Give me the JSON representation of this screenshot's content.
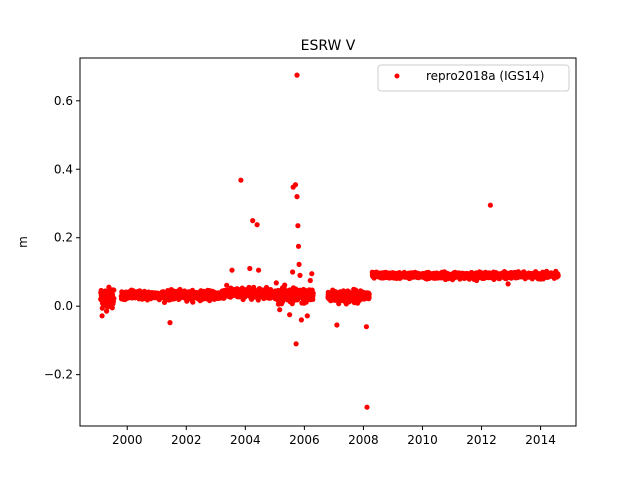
{
  "chart_data": {
    "type": "scatter",
    "title": "ESRW V",
    "xlabel": "",
    "ylabel": "m",
    "xlim": [
      1998.4,
      2015.2
    ],
    "ylim": [
      -0.35,
      0.725
    ],
    "xticks": [
      2000,
      2002,
      2004,
      2006,
      2008,
      2010,
      2012,
      2014
    ],
    "xtick_labels": [
      "2000",
      "2002",
      "2004",
      "2006",
      "2008",
      "2010",
      "2012",
      "2014"
    ],
    "yticks": [
      -0.2,
      0.0,
      0.2,
      0.4,
      0.6
    ],
    "ytick_labels": [
      "−0.2",
      "0.0",
      "0.2",
      "0.4",
      "0.6"
    ],
    "grid": false,
    "legend_position": "top-right",
    "colors": {
      "series": "#ff0000",
      "axes": "#000000"
    },
    "series": [
      {
        "name": "repro2018a (IGS14)",
        "marker": "circle",
        "color": "#ff0000",
        "segments": [
          {
            "x_start": 1999.1,
            "x_end": 1999.55,
            "y_center": 0.025,
            "y_spread": 0.03
          },
          {
            "x_start": 1999.8,
            "x_end": 2003.2,
            "y_center": 0.032,
            "y_spread": 0.012
          },
          {
            "x_start": 2003.2,
            "x_end": 2004.9,
            "y_center": 0.038,
            "y_spread": 0.014
          },
          {
            "x_start": 2005.0,
            "x_end": 2006.3,
            "y_center": 0.03,
            "y_spread": 0.02
          },
          {
            "x_start": 2006.8,
            "x_end": 2008.2,
            "y_center": 0.03,
            "y_spread": 0.016
          },
          {
            "x_start": 2008.3,
            "x_end": 2014.6,
            "y_center": 0.09,
            "y_spread": 0.008
          }
        ],
        "outliers": [
          {
            "x": 1999.15,
            "y": -0.028
          },
          {
            "x": 2001.45,
            "y": -0.048
          },
          {
            "x": 2003.55,
            "y": 0.105
          },
          {
            "x": 2003.85,
            "y": 0.368
          },
          {
            "x": 2004.15,
            "y": 0.11
          },
          {
            "x": 2004.25,
            "y": 0.25
          },
          {
            "x": 2004.4,
            "y": 0.238
          },
          {
            "x": 2004.45,
            "y": 0.105
          },
          {
            "x": 2005.05,
            "y": 0.068
          },
          {
            "x": 2005.5,
            "y": -0.025
          },
          {
            "x": 2005.6,
            "y": 0.1
          },
          {
            "x": 2005.62,
            "y": 0.348
          },
          {
            "x": 2005.7,
            "y": 0.355
          },
          {
            "x": 2005.72,
            "y": -0.11
          },
          {
            "x": 2005.75,
            "y": 0.32
          },
          {
            "x": 2005.75,
            "y": 0.675
          },
          {
            "x": 2005.78,
            "y": 0.235
          },
          {
            "x": 2005.8,
            "y": 0.175
          },
          {
            "x": 2005.82,
            "y": 0.122
          },
          {
            "x": 2005.85,
            "y": 0.09
          },
          {
            "x": 2005.9,
            "y": -0.04
          },
          {
            "x": 2006.1,
            "y": -0.028
          },
          {
            "x": 2006.2,
            "y": 0.075
          },
          {
            "x": 2006.25,
            "y": 0.095
          },
          {
            "x": 2007.1,
            "y": -0.055
          },
          {
            "x": 2008.1,
            "y": -0.06
          },
          {
            "x": 2008.12,
            "y": -0.295
          },
          {
            "x": 2012.3,
            "y": 0.295
          },
          {
            "x": 2012.9,
            "y": 0.065
          }
        ]
      }
    ]
  }
}
